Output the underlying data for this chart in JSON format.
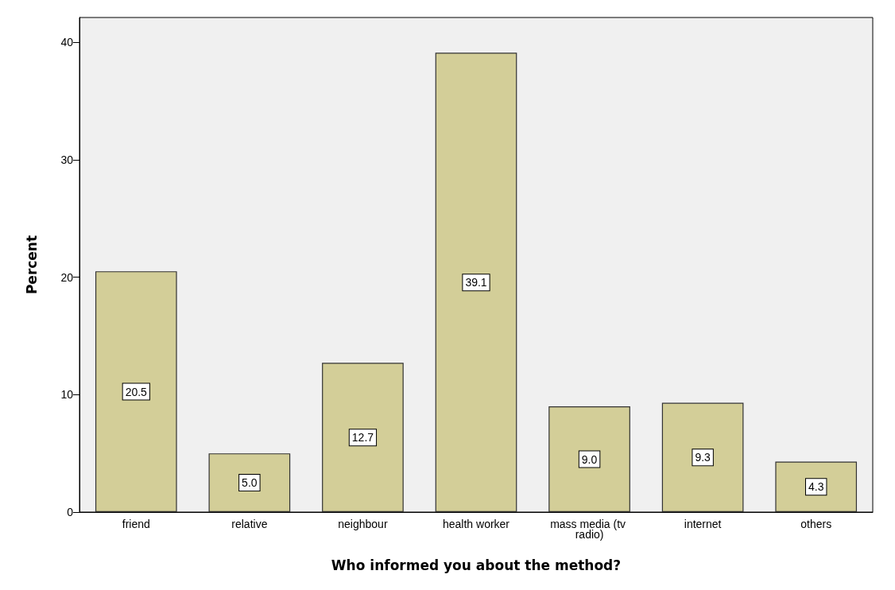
{
  "chart_data": {
    "type": "bar",
    "xlabel": "Who informed you about the method?",
    "ylabel": "Percent",
    "categories": [
      "friend",
      "relative",
      "neighbour",
      "health worker",
      "mass media (tv radio)",
      "internet",
      "others"
    ],
    "values": [
      20.5,
      5.0,
      12.7,
      39.1,
      9.0,
      9.3,
      4.3
    ],
    "value_labels": [
      "20.5",
      "5.0",
      "12.7",
      "39.1",
      "9.0",
      "9.3",
      "4.3"
    ],
    "color": "#d3ce98",
    "ylim": [
      0,
      42.1
    ],
    "yticks": [
      0,
      10,
      20,
      30,
      40
    ],
    "grid": false
  }
}
